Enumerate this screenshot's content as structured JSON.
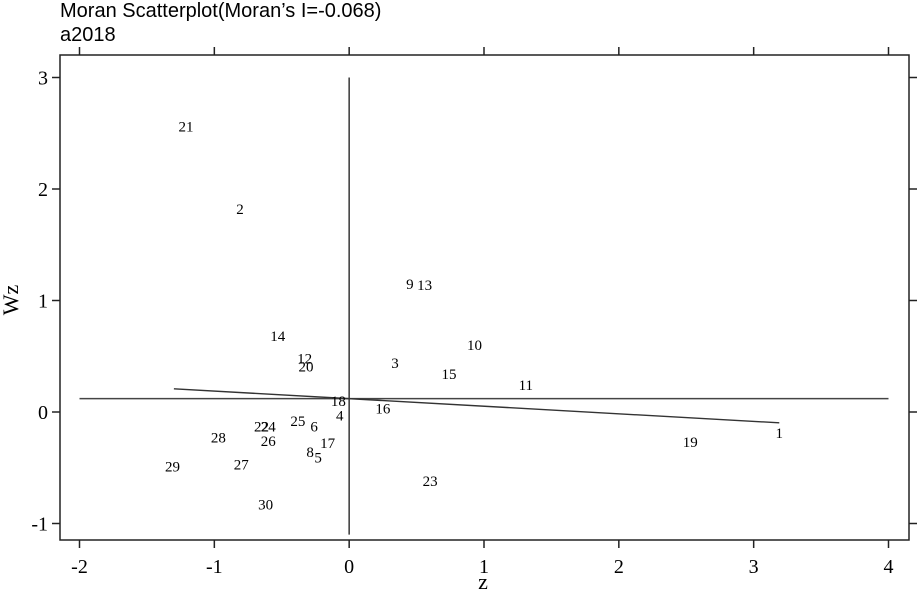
{
  "chart_data": {
    "type": "scatter",
    "title": "Moran Scatterplot(Moran’s I=-0.068)",
    "subtitle": "a2018",
    "xlabel": "z",
    "ylabel": "Wz",
    "xlim": [
      -2,
      4
    ],
    "ylim": [
      -1.1,
      3.1
    ],
    "xticks": [
      -2,
      -1,
      0,
      1,
      2,
      3,
      4
    ],
    "yticks": [
      -1,
      0,
      1,
      2,
      3
    ],
    "xtick_labels": [
      "-2",
      "-1",
      "0",
      "1",
      "2",
      "3",
      "4"
    ],
    "ytick_labels": [
      "-1",
      "0",
      "1",
      "2",
      "3"
    ],
    "mean_lines": {
      "x": 0,
      "y": 0.12
    },
    "regression_line": {
      "x": [
        -1.3,
        3.19
      ],
      "y": [
        0.208,
        -0.097
      ]
    },
    "points": [
      {
        "label": "1",
        "x": 3.19,
        "y": -0.19
      },
      {
        "label": "2",
        "x": -0.81,
        "y": 1.82
      },
      {
        "label": "3",
        "x": 0.34,
        "y": 0.44
      },
      {
        "label": "4",
        "x": -0.07,
        "y": -0.03
      },
      {
        "label": "5",
        "x": -0.23,
        "y": -0.41
      },
      {
        "label": "6",
        "x": -0.26,
        "y": -0.13
      },
      {
        "label": "8",
        "x": -0.29,
        "y": -0.36
      },
      {
        "label": "9",
        "x": 0.45,
        "y": 1.15
      },
      {
        "label": "10",
        "x": 0.93,
        "y": 0.6
      },
      {
        "label": "11",
        "x": 1.31,
        "y": 0.24
      },
      {
        "label": "12",
        "x": -0.33,
        "y": 0.48
      },
      {
        "label": "13",
        "x": 0.56,
        "y": 1.14
      },
      {
        "label": "14",
        "x": -0.53,
        "y": 0.68
      },
      {
        "label": "15",
        "x": 0.74,
        "y": 0.34
      },
      {
        "label": "16",
        "x": 0.25,
        "y": 0.03
      },
      {
        "label": "17",
        "x": -0.16,
        "y": -0.28
      },
      {
        "label": "18",
        "x": -0.08,
        "y": 0.1
      },
      {
        "label": "19",
        "x": 2.53,
        "y": -0.27
      },
      {
        "label": "20",
        "x": -0.32,
        "y": 0.41
      },
      {
        "label": "21",
        "x": -1.21,
        "y": 2.56
      },
      {
        "label": "22",
        "x": -0.65,
        "y": -0.13
      },
      {
        "label": "23",
        "x": 0.6,
        "y": -0.62
      },
      {
        "label": "24",
        "x": -0.6,
        "y": -0.13
      },
      {
        "label": "25",
        "x": -0.38,
        "y": -0.08
      },
      {
        "label": "26",
        "x": -0.6,
        "y": -0.26
      },
      {
        "label": "27",
        "x": -0.8,
        "y": -0.47
      },
      {
        "label": "28",
        "x": -0.97,
        "y": -0.23
      },
      {
        "label": "29",
        "x": -1.31,
        "y": -0.49
      },
      {
        "label": "30",
        "x": -0.62,
        "y": -0.83
      }
    ]
  }
}
